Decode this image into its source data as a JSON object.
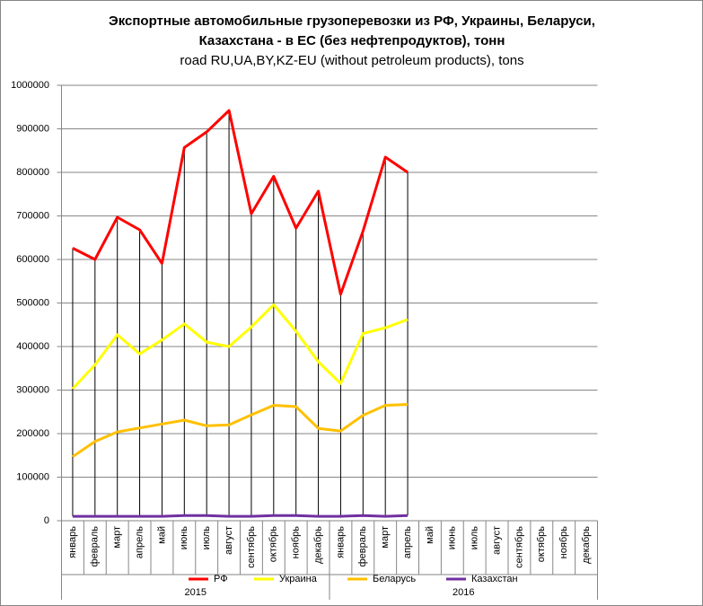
{
  "chart_data": {
    "type": "line",
    "title": [
      "Экспортные автомобильные грузоперевозки из РФ, Украины, Беларуси,",
      "Казахстана - в ЕС (без нефтепродуктов), тонн"
    ],
    "subtitle": "road RU,UA,BY,KZ-EU (without petroleum products), tons",
    "categories": [
      "январь",
      "февраль",
      "март",
      "апрель",
      "май",
      "июнь",
      "июль",
      "август",
      "сентябрь",
      "октябрь",
      "ноябрь",
      "декабрь",
      "январь",
      "февраль",
      "март",
      "апрель",
      "май",
      "июнь",
      "июль",
      "август",
      "сентябрь",
      "октябрь",
      "ноябрь",
      "декабрь"
    ],
    "category_groups": [
      "2015",
      "2016"
    ],
    "series": [
      {
        "name": "РФ",
        "color": "#ff0000",
        "values": [
          626000,
          600000,
          697000,
          668000,
          591000,
          857000,
          893000,
          942000,
          705000,
          791000,
          672000,
          757000,
          520000,
          665000,
          835000,
          800000,
          null,
          null,
          null,
          null,
          null,
          null,
          null,
          null
        ]
      },
      {
        "name": "Украина",
        "color": "#ffff00",
        "values": [
          303000,
          358000,
          427000,
          383000,
          415000,
          452000,
          410000,
          400000,
          445000,
          496000,
          435000,
          365000,
          315000,
          430000,
          443000,
          462000,
          null,
          null,
          null,
          null,
          null,
          null,
          null,
          null
        ]
      },
      {
        "name": "Беларусь",
        "color": "#ffc000",
        "values": [
          147000,
          182000,
          204000,
          213000,
          222000,
          231000,
          218000,
          220000,
          243000,
          265000,
          262000,
          212000,
          206000,
          242000,
          265000,
          267000,
          null,
          null,
          null,
          null,
          null,
          null,
          null,
          null
        ]
      },
      {
        "name": "Казахстан",
        "color": "#7030a0",
        "values": [
          10000,
          10000,
          10000,
          10000,
          10000,
          12000,
          12000,
          10000,
          10000,
          12000,
          12000,
          10000,
          10000,
          12000,
          10000,
          12000,
          null,
          null,
          null,
          null,
          null,
          null,
          null,
          null
        ]
      }
    ],
    "ylim": [
      0,
      1000000
    ],
    "yticks": [
      0,
      100000,
      200000,
      300000,
      400000,
      500000,
      600000,
      700000,
      800000,
      900000,
      1000000
    ],
    "grid": true,
    "high_low_lines": true,
    "legend": "bottom"
  }
}
